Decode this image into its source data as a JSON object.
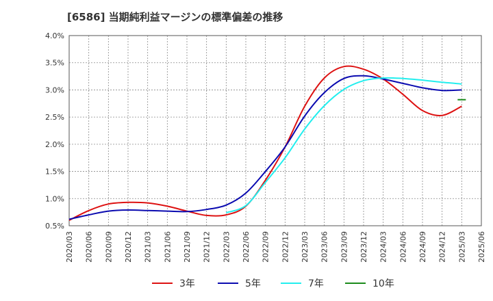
{
  "chart_data": {
    "type": "line",
    "title": "[6586]  当期純利益マージンの標準偏差の推移",
    "xlabel": "",
    "ylabel": "",
    "x": [
      "2020/03",
      "2020/06",
      "2020/09",
      "2020/12",
      "2021/03",
      "2021/06",
      "2021/09",
      "2021/12",
      "2022/03",
      "2022/06",
      "2022/09",
      "2022/12",
      "2023/03",
      "2023/06",
      "2023/09",
      "2023/12",
      "2024/03",
      "2024/06",
      "2024/09",
      "2024/12",
      "2025/03",
      "2025/06"
    ],
    "ylim": [
      0.5,
      4.0
    ],
    "yticks": [
      "0.5%",
      "1.0%",
      "1.5%",
      "2.0%",
      "2.5%",
      "3.0%",
      "3.5%",
      "4.0%"
    ],
    "grid": true,
    "legend_position": "bottom",
    "series": [
      {
        "name": "3年",
        "color": "#dd1111",
        "values": [
          0.6,
          0.78,
          0.9,
          0.93,
          0.92,
          0.86,
          0.77,
          0.69,
          0.7,
          0.86,
          1.34,
          1.95,
          2.7,
          3.22,
          3.43,
          3.38,
          3.2,
          2.92,
          2.62,
          2.53,
          2.7,
          null
        ]
      },
      {
        "name": "5年",
        "color": "#0a0ab0",
        "values": [
          0.62,
          0.7,
          0.77,
          0.79,
          0.78,
          0.77,
          0.76,
          0.8,
          0.88,
          1.1,
          1.5,
          1.95,
          2.52,
          2.95,
          3.21,
          3.26,
          3.2,
          3.12,
          3.04,
          2.99,
          3.0,
          null
        ]
      },
      {
        "name": "7年",
        "color": "#22eeee",
        "values": [
          null,
          null,
          null,
          null,
          null,
          null,
          null,
          null,
          0.74,
          0.87,
          1.3,
          1.75,
          2.28,
          2.71,
          3.01,
          3.17,
          3.22,
          3.21,
          3.18,
          3.14,
          3.11,
          null
        ]
      },
      {
        "name": "10年",
        "color": "#1a8a1a",
        "values": [
          null,
          null,
          null,
          null,
          null,
          null,
          null,
          null,
          null,
          null,
          null,
          null,
          null,
          null,
          null,
          null,
          null,
          null,
          null,
          null,
          2.82,
          null
        ]
      }
    ]
  }
}
